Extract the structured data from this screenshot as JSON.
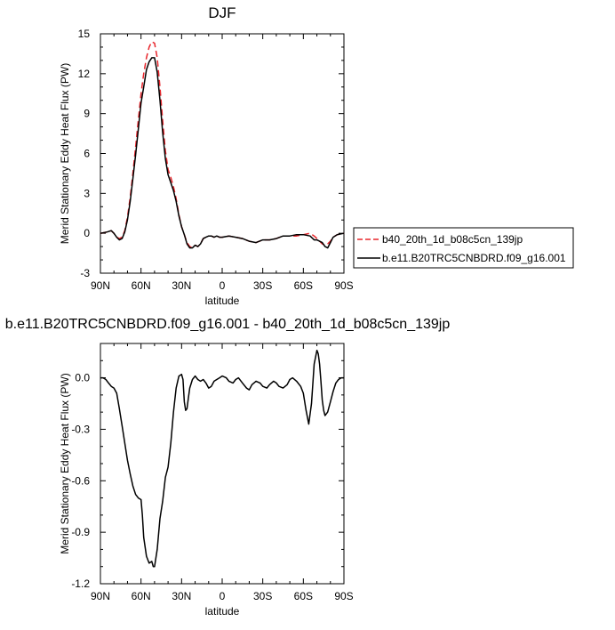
{
  "chart_data": [
    {
      "type": "line",
      "title": "DJF",
      "xlabel": "latitude",
      "ylabel": "Merid Stationary Eddy Heat Flux (PW)",
      "xlim": [
        90,
        -90
      ],
      "ylim": [
        -3,
        15
      ],
      "x_ticks": [
        90,
        60,
        30,
        0,
        -30,
        -60,
        -90
      ],
      "x_tick_labels": [
        "90N",
        "60N",
        "30N",
        "0",
        "30S",
        "60S",
        "90S"
      ],
      "y_ticks": [
        -3,
        0,
        3,
        6,
        9,
        12,
        15
      ],
      "y_tick_labels": [
        "-3",
        "0",
        "3",
        "6",
        "9",
        "12",
        "15"
      ],
      "legend_position": "right",
      "grid": false,
      "series": [
        {
          "name": "b40_20th_1d_b08c5cn_139jp",
          "color": "#e8262c",
          "dash": "dashed",
          "x": [
            90,
            85,
            82,
            80,
            78,
            76,
            74,
            72,
            70,
            68,
            66,
            64,
            62,
            60,
            58,
            56,
            54,
            52,
            50,
            48,
            46,
            44,
            42,
            40,
            38,
            36,
            34,
            32,
            30,
            28,
            26,
            24,
            22,
            20,
            18,
            16,
            14,
            12,
            10,
            8,
            6,
            4,
            2,
            0,
            -5,
            -10,
            -15,
            -20,
            -25,
            -30,
            -35,
            -40,
            -45,
            -50,
            -55,
            -60,
            -65,
            -68,
            -70,
            -72,
            -74,
            -76,
            -78,
            -80,
            -82,
            -85,
            -90
          ],
          "y": [
            0.0,
            0.1,
            0.2,
            0.0,
            -0.3,
            -0.4,
            -0.3,
            0.2,
            1.2,
            2.7,
            4.5,
            6.5,
            8.5,
            10.5,
            12.0,
            13.2,
            14.0,
            14.4,
            14.3,
            13.2,
            11.0,
            8.5,
            6.2,
            4.8,
            4.2,
            3.5,
            2.6,
            1.4,
            0.5,
            -0.1,
            -0.7,
            -1.0,
            -1.1,
            -0.9,
            -1.0,
            -0.8,
            -0.4,
            -0.3,
            -0.2,
            -0.2,
            -0.3,
            -0.2,
            -0.3,
            -0.3,
            -0.2,
            -0.3,
            -0.4,
            -0.6,
            -0.7,
            -0.5,
            -0.5,
            -0.4,
            -0.2,
            -0.2,
            -0.2,
            -0.1,
            0.0,
            -0.2,
            -0.4,
            -0.6,
            -0.8,
            -0.9,
            -0.8,
            -0.6,
            -0.3,
            -0.1,
            0.0
          ]
        },
        {
          "name": "b.e11.B20TRC5CNBDRD.f09_g16.001",
          "color": "#000000",
          "dash": "solid",
          "x": [
            90,
            85,
            82,
            80,
            78,
            76,
            74,
            72,
            70,
            68,
            66,
            64,
            62,
            60,
            58,
            56,
            54,
            52,
            50,
            48,
            46,
            44,
            42,
            40,
            38,
            36,
            34,
            32,
            30,
            28,
            26,
            24,
            22,
            20,
            18,
            16,
            14,
            12,
            10,
            8,
            6,
            4,
            2,
            0,
            -5,
            -10,
            -15,
            -20,
            -25,
            -30,
            -35,
            -40,
            -45,
            -50,
            -55,
            -60,
            -65,
            -68,
            -70,
            -72,
            -74,
            -76,
            -78,
            -80,
            -82,
            -85,
            -90
          ],
          "y": [
            0.0,
            0.1,
            0.2,
            0.0,
            -0.3,
            -0.5,
            -0.4,
            0.1,
            1.0,
            2.4,
            4.1,
            5.9,
            7.8,
            9.8,
            11.0,
            12.3,
            12.9,
            13.2,
            13.2,
            12.1,
            10.0,
            7.6,
            5.6,
            4.4,
            3.8,
            3.2,
            2.4,
            1.3,
            0.5,
            -0.1,
            -0.8,
            -1.1,
            -1.1,
            -0.9,
            -1.0,
            -0.8,
            -0.4,
            -0.3,
            -0.2,
            -0.2,
            -0.3,
            -0.2,
            -0.3,
            -0.3,
            -0.2,
            -0.3,
            -0.4,
            -0.6,
            -0.7,
            -0.5,
            -0.5,
            -0.4,
            -0.2,
            -0.2,
            -0.1,
            -0.1,
            -0.2,
            -0.5,
            -0.5,
            -0.6,
            -0.7,
            -1.0,
            -1.1,
            -0.7,
            -0.3,
            -0.1,
            0.0
          ]
        }
      ]
    },
    {
      "type": "line",
      "title": "b.e11.B20TRC5CNBDRD.f09_g16.001 - b40_20th_1d_b08c5cn_139jp",
      "xlabel": "latitude",
      "ylabel": "Merid Stationary Eddy Heat Flux (PW)",
      "xlim": [
        90,
        -90
      ],
      "ylim": [
        -1.2,
        0.2
      ],
      "x_ticks": [
        90,
        60,
        30,
        0,
        -30,
        -60,
        -90
      ],
      "x_tick_labels": [
        "90N",
        "60N",
        "30N",
        "0",
        "30S",
        "60S",
        "90S"
      ],
      "y_ticks": [
        -1.2,
        -0.9,
        -0.6,
        -0.3,
        0.0
      ],
      "y_tick_labels": [
        "-1.2",
        "-0.9",
        "-0.6",
        "-0.3",
        "0.0"
      ],
      "grid": false,
      "series": [
        {
          "name": "",
          "color": "#000000",
          "dash": "solid",
          "x": [
            90,
            88,
            86,
            84,
            82,
            80,
            78,
            76,
            74,
            72,
            70,
            68,
            66,
            64,
            62,
            60,
            59,
            58,
            56,
            54,
            52,
            51,
            50,
            48,
            46,
            44,
            42,
            40,
            38,
            36,
            34,
            32,
            30,
            29,
            28,
            27,
            26,
            25,
            24,
            22,
            20,
            18,
            16,
            14,
            12,
            10,
            8,
            6,
            4,
            2,
            0,
            -3,
            -5,
            -8,
            -10,
            -12,
            -15,
            -18,
            -20,
            -22,
            -25,
            -28,
            -30,
            -33,
            -35,
            -38,
            -40,
            -42,
            -45,
            -48,
            -50,
            -52,
            -55,
            -58,
            -60,
            -62,
            -64,
            -66,
            -68,
            -70,
            -71,
            -72,
            -73,
            -74,
            -75,
            -76,
            -78,
            -80,
            -82,
            -84,
            -86,
            -88,
            -90
          ],
          "y": [
            0.0,
            0.0,
            -0.01,
            -0.03,
            -0.05,
            -0.06,
            -0.09,
            -0.18,
            -0.28,
            -0.38,
            -0.48,
            -0.56,
            -0.63,
            -0.68,
            -0.7,
            -0.71,
            -0.8,
            -0.93,
            -1.04,
            -1.08,
            -1.07,
            -1.1,
            -1.1,
            -1.0,
            -0.82,
            -0.72,
            -0.58,
            -0.52,
            -0.38,
            -0.2,
            -0.06,
            0.01,
            0.02,
            -0.01,
            -0.14,
            -0.19,
            -0.18,
            -0.12,
            -0.06,
            -0.01,
            0.01,
            -0.01,
            -0.02,
            -0.01,
            -0.03,
            -0.06,
            -0.05,
            -0.02,
            -0.01,
            0.0,
            0.01,
            0.0,
            -0.02,
            -0.03,
            -0.01,
            0.0,
            -0.03,
            -0.06,
            -0.07,
            -0.04,
            -0.02,
            -0.03,
            -0.05,
            -0.06,
            -0.04,
            -0.02,
            -0.03,
            -0.05,
            -0.06,
            -0.04,
            -0.01,
            0.0,
            -0.02,
            -0.05,
            -0.09,
            -0.19,
            -0.27,
            -0.15,
            0.08,
            0.16,
            0.14,
            0.08,
            -0.02,
            -0.13,
            -0.19,
            -0.22,
            -0.2,
            -0.14,
            -0.08,
            -0.03,
            -0.01,
            0.0,
            0.0
          ]
        }
      ]
    }
  ]
}
